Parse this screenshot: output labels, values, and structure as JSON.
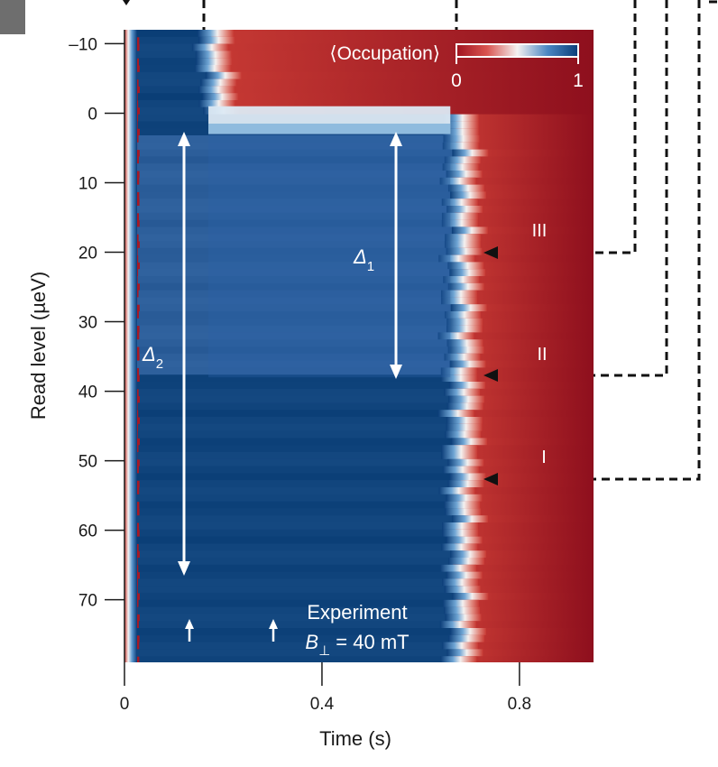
{
  "chart_data": {
    "type": "heatmap",
    "xlabel": "Time (s)",
    "ylabel": "Read level (µeV)",
    "xlim": [
      0,
      0.95
    ],
    "ylim": [
      -12,
      79
    ],
    "x_ticks": [
      0,
      0.4,
      0.8
    ],
    "x_tick_labels": [
      "0",
      "0.4",
      "0.8"
    ],
    "y_ticks": [
      -10,
      0,
      10,
      20,
      30,
      40,
      50,
      60,
      70
    ],
    "y_tick_labels": [
      "–10",
      "0",
      "10",
      "20",
      "30",
      "40",
      "50",
      "60",
      "70"
    ],
    "colorbar": {
      "label": "⟨Occupation⟩",
      "min_label": "0",
      "max_label": "1",
      "range": [
        0,
        1
      ],
      "low_color": "#b31d2a",
      "mid_color": "#f4f1f0",
      "high_color": "#0b3d78"
    },
    "regions": [
      {
        "description_level": "read level < 0",
        "blue_from_s": 0.02,
        "blue_to_s": 0.17
      },
      {
        "description_level": "0 to 3 µeV",
        "blue_from_s": 0.02,
        "blue_to_s": 0.67,
        "light_from_s": 0.17
      },
      {
        "description_level": "3 to 79 µeV",
        "blue_from_s": 0.02,
        "blue_to_s": 0.68
      }
    ],
    "annotations": {
      "delta1": {
        "label": "Δ",
        "sub": "1",
        "x": 0.55,
        "y_from": 3,
        "y_to": 38
      },
      "delta2": {
        "label": "Δ",
        "sub": "2",
        "x": 0.12,
        "y_from": 3,
        "y_to": 66
      },
      "markers": [
        {
          "label": "III",
          "level": 20,
          "x": 0.73
        },
        {
          "label": "II",
          "level": 37.5,
          "x": 0.73
        },
        {
          "label": "I",
          "level": 52,
          "x": 0.73
        }
      ],
      "small_arrows_x": [
        0.13,
        0.3
      ],
      "experiment_line1": "Experiment",
      "experiment_line2_B": "B",
      "experiment_line2_sub": "⊥",
      "experiment_line2_rest": " = 40 mT"
    },
    "grid": false
  }
}
